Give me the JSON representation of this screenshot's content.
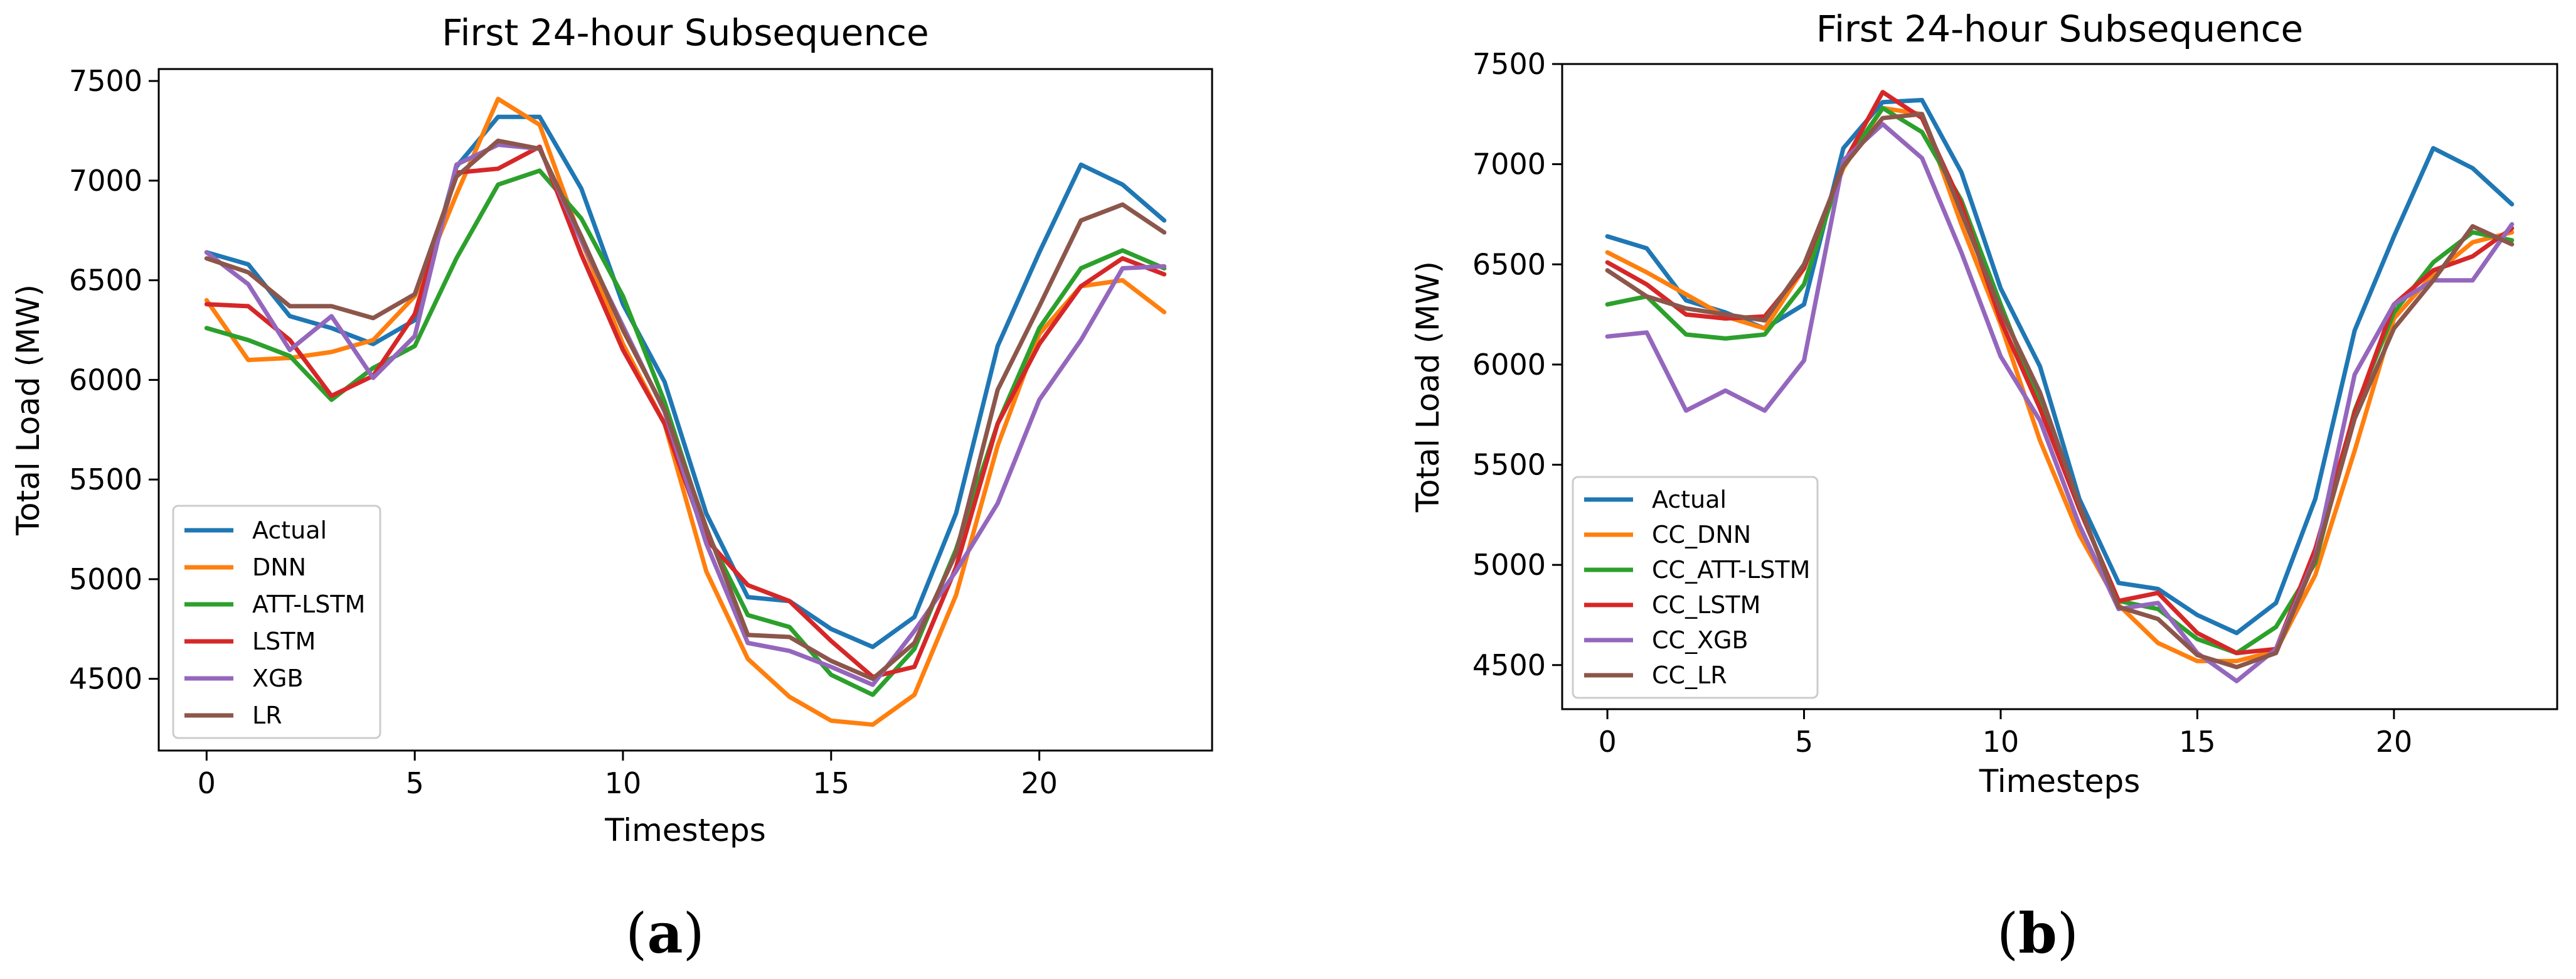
{
  "chart_data": [
    {
      "type": "line",
      "id": "a",
      "caption_letter": "a",
      "title": "First 24-hour Subsequence",
      "xlabel": "Timesteps",
      "ylabel": "Total Load (MW)",
      "xlim": [
        -1.15,
        24.15
      ],
      "ylim": [
        4140,
        7560
      ],
      "xticks": [
        0,
        5,
        10,
        15,
        20
      ],
      "yticks": [
        4500,
        5000,
        5500,
        6000,
        6500,
        7000,
        7500
      ],
      "legend_position": "lower-left",
      "x": [
        0,
        1,
        2,
        3,
        4,
        5,
        6,
        7,
        8,
        9,
        10,
        11,
        12,
        13,
        14,
        15,
        16,
        17,
        18,
        19,
        20,
        21,
        22,
        23
      ],
      "series": [
        {
          "name": "Actual",
          "color": "#1f77b4",
          "values": [
            6640,
            6580,
            6320,
            6260,
            6180,
            6300,
            7070,
            7320,
            7320,
            6960,
            6380,
            5990,
            5330,
            4910,
            4890,
            4750,
            4660,
            4810,
            5330,
            6170,
            6640,
            7080,
            6980,
            6800
          ]
        },
        {
          "name": "DNN",
          "color": "#ff7f0e",
          "values": [
            6400,
            6100,
            6110,
            6140,
            6200,
            6420,
            6930,
            7410,
            7280,
            6700,
            6180,
            5780,
            5040,
            4600,
            4410,
            4290,
            4270,
            4420,
            4920,
            5670,
            6230,
            6470,
            6500,
            6340
          ]
        },
        {
          "name": "ATT-LSTM",
          "color": "#2ca02c",
          "values": [
            6260,
            6200,
            6120,
            5900,
            6060,
            6170,
            6610,
            6980,
            7050,
            6810,
            6420,
            5890,
            5240,
            4820,
            4760,
            4520,
            4420,
            4650,
            5150,
            5780,
            6260,
            6560,
            6650,
            6560
          ]
        },
        {
          "name": "LSTM",
          "color": "#d62728",
          "values": [
            6380,
            6370,
            6200,
            5920,
            6020,
            6330,
            7040,
            7060,
            7170,
            6630,
            6150,
            5780,
            5200,
            4970,
            4890,
            4690,
            4510,
            4560,
            5060,
            5780,
            6180,
            6470,
            6610,
            6530
          ]
        },
        {
          "name": "XGB",
          "color": "#9467bd",
          "values": [
            6640,
            6480,
            6150,
            6320,
            6010,
            6220,
            7080,
            7180,
            7160,
            6700,
            6270,
            5840,
            5180,
            4680,
            4640,
            4560,
            4470,
            4740,
            5040,
            5380,
            5900,
            6200,
            6560,
            6570
          ]
        },
        {
          "name": "LR",
          "color": "#8c564b",
          "values": [
            6610,
            6540,
            6370,
            6370,
            6310,
            6430,
            7020,
            7200,
            7160,
            6720,
            6250,
            5850,
            5260,
            4720,
            4710,
            4590,
            4500,
            4680,
            5130,
            5950,
            6370,
            6800,
            6880,
            6740
          ]
        }
      ]
    },
    {
      "type": "line",
      "id": "b",
      "caption_letter": "b",
      "title": "First 24-hour Subsequence",
      "xlabel": "Timesteps",
      "ylabel": "Total Load (MW)",
      "xlim": [
        -1.15,
        24.15
      ],
      "ylim": [
        4280,
        7500
      ],
      "xticks": [
        0,
        5,
        10,
        15,
        20
      ],
      "yticks": [
        4500,
        5000,
        5500,
        6000,
        6500,
        7000,
        7500
      ],
      "legend_position": "lower-left",
      "x": [
        0,
        1,
        2,
        3,
        4,
        5,
        6,
        7,
        8,
        9,
        10,
        11,
        12,
        13,
        14,
        15,
        16,
        17,
        18,
        19,
        20,
        21,
        22,
        23
      ],
      "series": [
        {
          "name": "Actual",
          "color": "#1f77b4",
          "values": [
            6640,
            6580,
            6320,
            6260,
            6180,
            6300,
            7080,
            7310,
            7320,
            6960,
            6380,
            5990,
            5330,
            4910,
            4880,
            4750,
            4660,
            4810,
            5330,
            6170,
            6640,
            7080,
            6980,
            6800
          ]
        },
        {
          "name": "CC_DNN",
          "color": "#ff7f0e",
          "values": [
            6560,
            6460,
            6350,
            6240,
            6180,
            6480,
            6980,
            7280,
            7250,
            6700,
            6200,
            5620,
            5150,
            4800,
            4610,
            4520,
            4520,
            4570,
            4950,
            5570,
            6230,
            6450,
            6610,
            6660
          ]
        },
        {
          "name": "CC_ATT-LSTM",
          "color": "#2ca02c",
          "values": [
            6300,
            6340,
            6150,
            6130,
            6150,
            6400,
            7000,
            7280,
            7160,
            6820,
            6300,
            5800,
            5280,
            4820,
            4780,
            4630,
            4560,
            4690,
            5010,
            5770,
            6260,
            6510,
            6660,
            6620
          ]
        },
        {
          "name": "CC_LSTM",
          "color": "#d62728",
          "values": [
            6510,
            6400,
            6250,
            6230,
            6240,
            6480,
            7000,
            7360,
            7230,
            6800,
            6220,
            5780,
            5280,
            4820,
            4860,
            4660,
            4560,
            4580,
            5080,
            5760,
            6300,
            6470,
            6540,
            6680
          ]
        },
        {
          "name": "CC_XGB",
          "color": "#9467bd",
          "values": [
            6140,
            6160,
            5770,
            5870,
            5770,
            6020,
            7020,
            7200,
            7030,
            6560,
            6040,
            5720,
            5200,
            4780,
            4810,
            4560,
            4420,
            4580,
            5040,
            5950,
            6300,
            6420,
            6420,
            6700
          ]
        },
        {
          "name": "CC_LR",
          "color": "#8c564b",
          "values": [
            6470,
            6340,
            6280,
            6250,
            6220,
            6500,
            6990,
            7230,
            7250,
            6760,
            6270,
            5860,
            5300,
            4790,
            4730,
            4550,
            4490,
            4560,
            5030,
            5730,
            6180,
            6420,
            6690,
            6600
          ]
        }
      ]
    }
  ]
}
